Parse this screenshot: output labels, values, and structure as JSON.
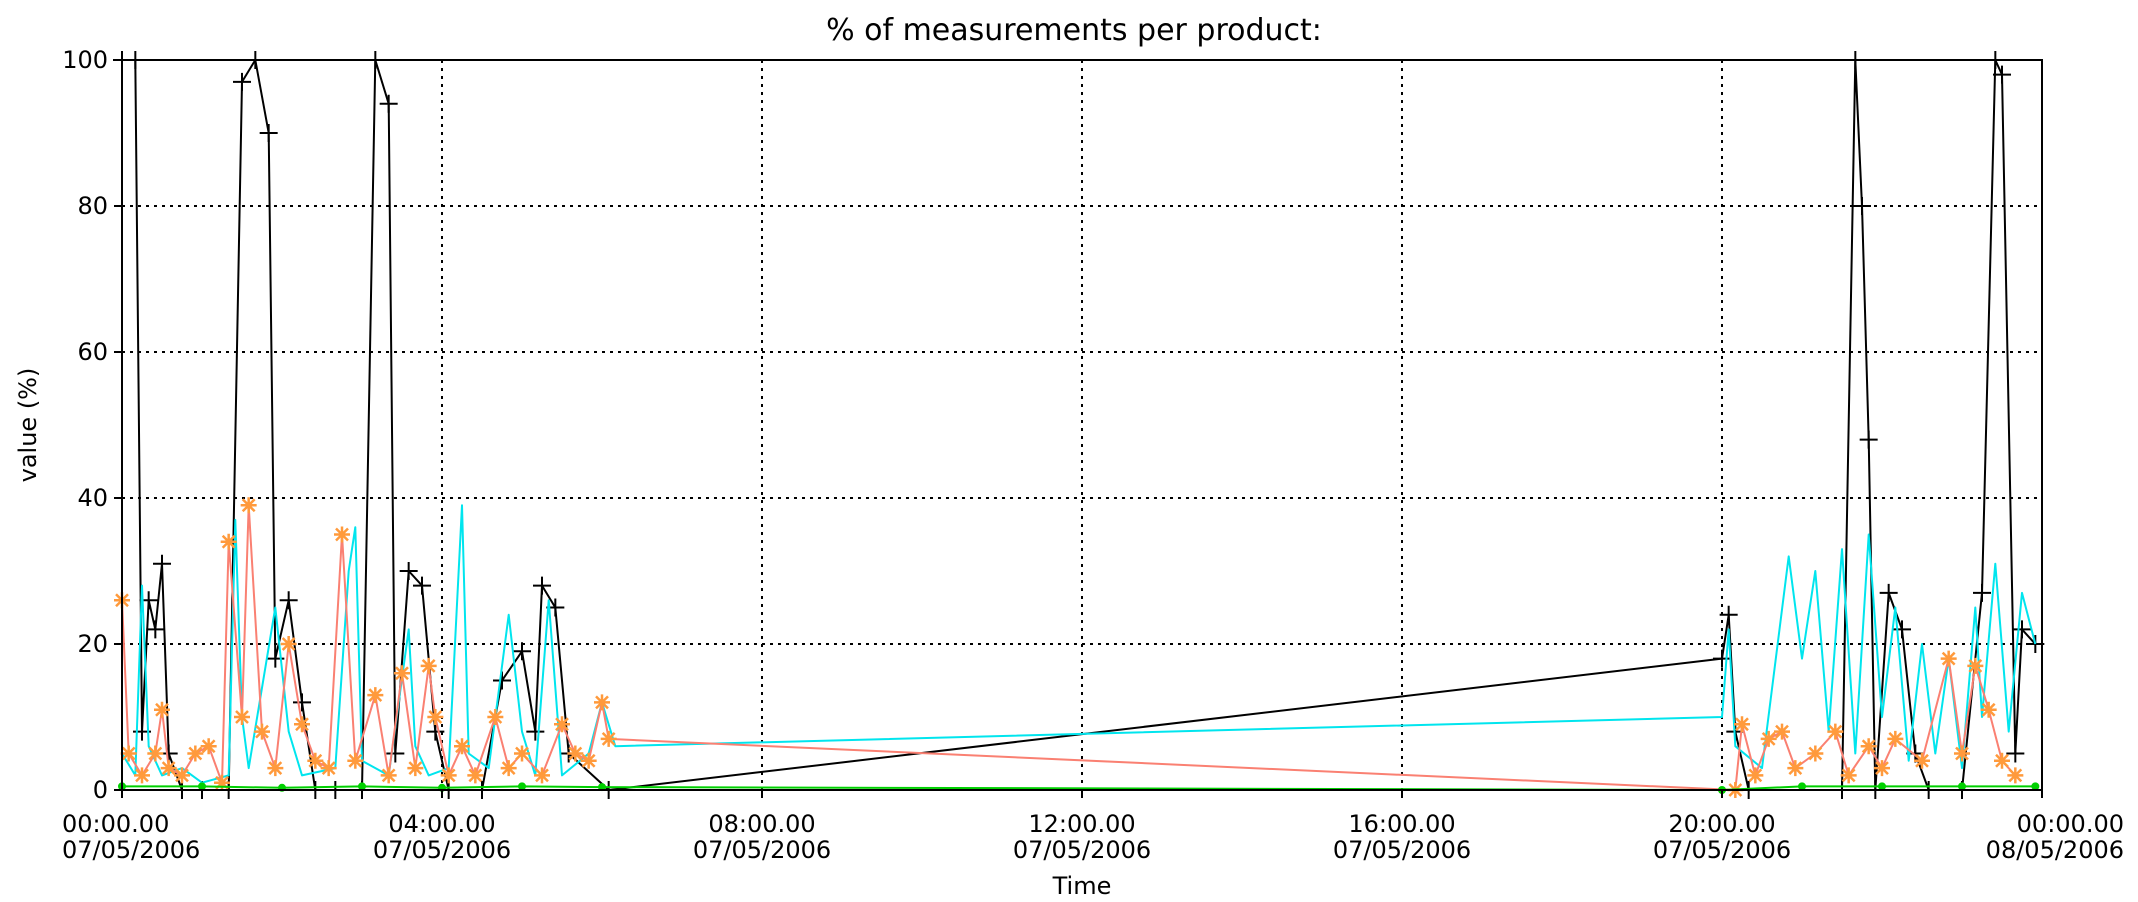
{
  "chart_data": {
    "type": "line",
    "title": "% of measurements per product:",
    "xlabel": "Time",
    "ylabel": "value (%)",
    "ylim": [
      0,
      100
    ],
    "yticks": [
      0,
      20,
      40,
      60,
      80,
      100
    ],
    "xlim": [
      "2006-05-07T00:00",
      "2006-05-08T00:00"
    ],
    "xticks": [
      {
        "time": "2006-05-07T00:00",
        "line1": "00:00.00",
        "line2": "07/05/2006"
      },
      {
        "time": "2006-05-07T04:00",
        "line1": "04:00.00",
        "line2": "07/05/2006"
      },
      {
        "time": "2006-05-07T08:00",
        "line1": "08:00.00",
        "line2": "07/05/2006"
      },
      {
        "time": "2006-05-07T12:00",
        "line1": "12:00.00",
        "line2": "07/05/2006"
      },
      {
        "time": "2006-05-07T16:00",
        "line1": "16:00.00",
        "line2": "07/05/2006"
      },
      {
        "time": "2006-05-07T20:00",
        "line1": "20:00.00",
        "line2": "07/05/2006"
      },
      {
        "time": "2006-05-08T00:00",
        "line1": "00:00.00",
        "line2": "08/05/2006"
      }
    ],
    "grid": true,
    "series": [
      {
        "color": "#000000",
        "marker": "plus",
        "points": [
          [
            "2006-05-07T00:00",
            100
          ],
          [
            "2006-05-07T00:10",
            100
          ],
          [
            "2006-05-07T00:15",
            8
          ],
          [
            "2006-05-07T00:20",
            26
          ],
          [
            "2006-05-07T00:25",
            22
          ],
          [
            "2006-05-07T00:30",
            31
          ],
          [
            "2006-05-07T00:35",
            5
          ],
          [
            "2006-05-07T00:45",
            0
          ],
          [
            "2006-05-07T01:00",
            0
          ],
          [
            "2006-05-07T01:20",
            0
          ],
          [
            "2006-05-07T01:30",
            97
          ],
          [
            "2006-05-07T01:40",
            100
          ],
          [
            "2006-05-07T01:50",
            90
          ],
          [
            "2006-05-07T01:55",
            18
          ],
          [
            "2006-05-07T02:05",
            26
          ],
          [
            "2006-05-07T02:15",
            12
          ],
          [
            "2006-05-07T02:25",
            0
          ],
          [
            "2006-05-07T02:40",
            0
          ],
          [
            "2006-05-07T03:00",
            0
          ],
          [
            "2006-05-07T03:10",
            100
          ],
          [
            "2006-05-07T03:20",
            94
          ],
          [
            "2006-05-07T03:25",
            5
          ],
          [
            "2006-05-07T03:35",
            30
          ],
          [
            "2006-05-07T03:45",
            28
          ],
          [
            "2006-05-07T03:55",
            8
          ],
          [
            "2006-05-07T04:05",
            0
          ],
          [
            "2006-05-07T04:30",
            0
          ],
          [
            "2006-05-07T04:45",
            15
          ],
          [
            "2006-05-07T05:00",
            19
          ],
          [
            "2006-05-07T05:10",
            8
          ],
          [
            "2006-05-07T05:15",
            28
          ],
          [
            "2006-05-07T05:25",
            25
          ],
          [
            "2006-05-07T05:35",
            5
          ],
          [
            "2006-05-07T06:05",
            0
          ],
          [
            "2006-05-07T20:00",
            18
          ],
          [
            "2006-05-07T20:05",
            24
          ],
          [
            "2006-05-07T20:10",
            8
          ],
          [
            "2006-05-07T20:20",
            0
          ],
          [
            "2006-05-07T21:30",
            0
          ],
          [
            "2006-05-07T21:40",
            100
          ],
          [
            "2006-05-07T21:45",
            80
          ],
          [
            "2006-05-07T21:50",
            48
          ],
          [
            "2006-05-07T21:55",
            0
          ],
          [
            "2006-05-07T22:05",
            27
          ],
          [
            "2006-05-07T22:15",
            22
          ],
          [
            "2006-05-07T22:25",
            5
          ],
          [
            "2006-05-07T22:35",
            0
          ],
          [
            "2006-05-07T23:00",
            0
          ],
          [
            "2006-05-07T23:15",
            27
          ],
          [
            "2006-05-07T23:25",
            100
          ],
          [
            "2006-05-07T23:30",
            98
          ],
          [
            "2006-05-07T23:40",
            5
          ],
          [
            "2006-05-07T23:45",
            22
          ],
          [
            "2006-05-07T23:55",
            20
          ]
        ]
      },
      {
        "color": "#00e5ee",
        "marker": "none",
        "points": [
          [
            "2006-05-07T00:00",
            5
          ],
          [
            "2006-05-07T00:10",
            2
          ],
          [
            "2006-05-07T00:15",
            28
          ],
          [
            "2006-05-07T00:20",
            6
          ],
          [
            "2006-05-07T00:30",
            2
          ],
          [
            "2006-05-07T00:45",
            3
          ],
          [
            "2006-05-07T01:00",
            1
          ],
          [
            "2006-05-07T01:20",
            2
          ],
          [
            "2006-05-07T01:25",
            37
          ],
          [
            "2006-05-07T01:30",
            10
          ],
          [
            "2006-05-07T01:35",
            3
          ],
          [
            "2006-05-07T01:55",
            25
          ],
          [
            "2006-05-07T02:05",
            8
          ],
          [
            "2006-05-07T02:15",
            2
          ],
          [
            "2006-05-07T02:40",
            3
          ],
          [
            "2006-05-07T02:50",
            30
          ],
          [
            "2006-05-07T02:55",
            36
          ],
          [
            "2006-05-07T03:00",
            4
          ],
          [
            "2006-05-07T03:20",
            2
          ],
          [
            "2006-05-07T03:35",
            22
          ],
          [
            "2006-05-07T03:40",
            6
          ],
          [
            "2006-05-07T03:50",
            2
          ],
          [
            "2006-05-07T04:05",
            3
          ],
          [
            "2006-05-07T04:15",
            39
          ],
          [
            "2006-05-07T04:20",
            5
          ],
          [
            "2006-05-07T04:35",
            3
          ],
          [
            "2006-05-07T04:50",
            24
          ],
          [
            "2006-05-07T05:00",
            8
          ],
          [
            "2006-05-07T05:10",
            2
          ],
          [
            "2006-05-07T05:20",
            26
          ],
          [
            "2006-05-07T05:30",
            2
          ],
          [
            "2006-05-07T05:50",
            5
          ],
          [
            "2006-05-07T06:00",
            12
          ],
          [
            "2006-05-07T06:10",
            6
          ],
          [
            "2006-05-07T20:00",
            10
          ],
          [
            "2006-05-07T20:05",
            22
          ],
          [
            "2006-05-07T20:10",
            6
          ],
          [
            "2006-05-07T20:30",
            3
          ],
          [
            "2006-05-07T20:50",
            32
          ],
          [
            "2006-05-07T21:00",
            18
          ],
          [
            "2006-05-07T21:10",
            30
          ],
          [
            "2006-05-07T21:20",
            8
          ],
          [
            "2006-05-07T21:30",
            33
          ],
          [
            "2006-05-07T21:40",
            5
          ],
          [
            "2006-05-07T21:50",
            35
          ],
          [
            "2006-05-07T22:00",
            10
          ],
          [
            "2006-05-07T22:10",
            25
          ],
          [
            "2006-05-07T22:20",
            4
          ],
          [
            "2006-05-07T22:30",
            20
          ],
          [
            "2006-05-07T22:40",
            5
          ],
          [
            "2006-05-07T22:50",
            18
          ],
          [
            "2006-05-07T23:00",
            3
          ],
          [
            "2006-05-07T23:10",
            25
          ],
          [
            "2006-05-07T23:15",
            10
          ],
          [
            "2006-05-07T23:25",
            31
          ],
          [
            "2006-05-07T23:35",
            8
          ],
          [
            "2006-05-07T23:45",
            27
          ],
          [
            "2006-05-07T23:55",
            20
          ]
        ]
      },
      {
        "color": "#fa8072",
        "marker": "star",
        "points": [
          [
            "2006-05-07T00:00",
            26
          ],
          [
            "2006-05-07T00:05",
            5
          ],
          [
            "2006-05-07T00:15",
            2
          ],
          [
            "2006-05-07T00:25",
            5
          ],
          [
            "2006-05-07T00:30",
            11
          ],
          [
            "2006-05-07T00:35",
            3
          ],
          [
            "2006-05-07T00:45",
            2
          ],
          [
            "2006-05-07T00:55",
            5
          ],
          [
            "2006-05-07T01:05",
            6
          ],
          [
            "2006-05-07T01:15",
            1
          ],
          [
            "2006-05-07T01:20",
            34
          ],
          [
            "2006-05-07T01:30",
            10
          ],
          [
            "2006-05-07T01:35",
            39
          ],
          [
            "2006-05-07T01:45",
            8
          ],
          [
            "2006-05-07T01:55",
            3
          ],
          [
            "2006-05-07T02:05",
            20
          ],
          [
            "2006-05-07T02:15",
            9
          ],
          [
            "2006-05-07T02:25",
            4
          ],
          [
            "2006-05-07T02:35",
            3
          ],
          [
            "2006-05-07T02:45",
            35
          ],
          [
            "2006-05-07T02:55",
            4
          ],
          [
            "2006-05-07T03:10",
            13
          ],
          [
            "2006-05-07T03:20",
            2
          ],
          [
            "2006-05-07T03:30",
            16
          ],
          [
            "2006-05-07T03:40",
            3
          ],
          [
            "2006-05-07T03:50",
            17
          ],
          [
            "2006-05-07T03:55",
            10
          ],
          [
            "2006-05-07T04:05",
            2
          ],
          [
            "2006-05-07T04:15",
            6
          ],
          [
            "2006-05-07T04:25",
            2
          ],
          [
            "2006-05-07T04:40",
            10
          ],
          [
            "2006-05-07T04:50",
            3
          ],
          [
            "2006-05-07T05:00",
            5
          ],
          [
            "2006-05-07T05:15",
            2
          ],
          [
            "2006-05-07T05:30",
            9
          ],
          [
            "2006-05-07T05:40",
            5
          ],
          [
            "2006-05-07T05:50",
            4
          ],
          [
            "2006-05-07T06:00",
            12
          ],
          [
            "2006-05-07T06:05",
            7
          ],
          [
            "2006-05-07T20:10",
            0
          ],
          [
            "2006-05-07T20:15",
            9
          ],
          [
            "2006-05-07T20:25",
            2
          ],
          [
            "2006-05-07T20:35",
            7
          ],
          [
            "2006-05-07T20:45",
            8
          ],
          [
            "2006-05-07T20:55",
            3
          ],
          [
            "2006-05-07T21:10",
            5
          ],
          [
            "2006-05-07T21:25",
            8
          ],
          [
            "2006-05-07T21:35",
            2
          ],
          [
            "2006-05-07T21:50",
            6
          ],
          [
            "2006-05-07T22:00",
            3
          ],
          [
            "2006-05-07T22:10",
            7
          ],
          [
            "2006-05-07T22:30",
            4
          ],
          [
            "2006-05-07T22:50",
            18
          ],
          [
            "2006-05-07T23:00",
            5
          ],
          [
            "2006-05-07T23:10",
            17
          ],
          [
            "2006-05-07T23:20",
            11
          ],
          [
            "2006-05-07T23:30",
            4
          ],
          [
            "2006-05-07T23:40",
            2
          ]
        ]
      },
      {
        "color": "#00d000",
        "marker": "dot",
        "points": [
          [
            "2006-05-07T00:00",
            0.5
          ],
          [
            "2006-05-07T01:00",
            0.5
          ],
          [
            "2006-05-07T02:00",
            0.3
          ],
          [
            "2006-05-07T03:00",
            0.5
          ],
          [
            "2006-05-07T04:00",
            0.3
          ],
          [
            "2006-05-07T05:00",
            0.5
          ],
          [
            "2006-05-07T06:00",
            0.4
          ],
          [
            "2006-05-07T20:00",
            0
          ],
          [
            "2006-05-07T21:00",
            0.5
          ],
          [
            "2006-05-07T22:00",
            0.5
          ],
          [
            "2006-05-07T23:00",
            0.5
          ],
          [
            "2006-05-07T23:55",
            0.5
          ]
        ]
      },
      {
        "color": "#a020f0",
        "marker": "none",
        "points": [
          [
            "2006-05-07T00:00",
            0
          ],
          [
            "2006-05-07T06:00",
            0
          ],
          [
            "2006-05-07T20:00",
            0
          ],
          [
            "2006-05-07T23:55",
            0
          ]
        ]
      }
    ]
  }
}
